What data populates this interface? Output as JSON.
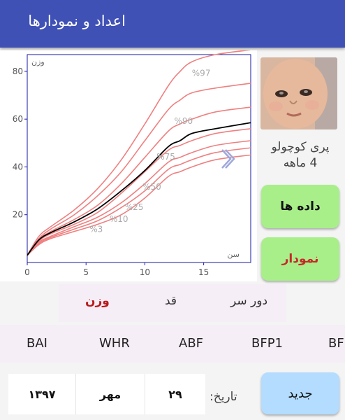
{
  "app": {
    "title": "اعداد و نمودارها"
  },
  "profile": {
    "name": "پری کوچولو",
    "age": "4 ماهه"
  },
  "side_buttons": {
    "data": "داده ها",
    "chart": "نمودار"
  },
  "metric_tabs": [
    {
      "label": "دور سر",
      "active": false
    },
    {
      "label": "قد",
      "active": false
    },
    {
      "label": "وزن",
      "active": true
    }
  ],
  "index_tabs": [
    "BAI",
    "WHR",
    "ABF",
    "BFP1",
    "BF"
  ],
  "date": {
    "label": "تاریخ:",
    "day": "۲۹",
    "month": "مهر",
    "year": "۱۳۹۷"
  },
  "new_button": "جدید",
  "colors": {
    "appbar": "#3f51b5",
    "percentile_line": "#ef8080",
    "child_line": "#000000",
    "data_button": "#a8ef8a",
    "new_button": "#b3dcff",
    "active_tab": "#b71c1c"
  },
  "icons": {
    "expand": "chevron-right-icon"
  },
  "chart_data": {
    "type": "line",
    "xlabel": "سن",
    "ylabel": "وزن",
    "xlim": [
      0,
      19
    ],
    "ylim": [
      0,
      87
    ],
    "x_ticks": [
      0,
      5,
      10,
      15
    ],
    "y_ticks": [
      20,
      40,
      60,
      80
    ],
    "grid": false,
    "x": [
      0,
      1,
      2,
      4,
      6,
      8,
      10,
      12,
      13,
      14,
      16,
      19
    ],
    "series": [
      {
        "name": "%97",
        "values": [
          3,
          11,
          15,
          22,
          31,
          43,
          58,
          74,
          80,
          84,
          87,
          89
        ],
        "label_at": 13.8
      },
      {
        "name": "%90",
        "values": [
          3,
          10,
          14,
          20,
          28,
          38,
          51,
          64,
          68,
          71,
          73,
          75
        ]
      },
      {
        "name": "%75",
        "values": [
          3,
          9.5,
          13,
          18,
          24,
          33,
          44,
          55,
          58,
          60,
          63,
          65
        ]
      },
      {
        "name": "%50",
        "values": [
          3,
          9,
          12,
          16,
          21,
          29,
          38,
          47,
          49,
          51,
          54,
          56
        ]
      },
      {
        "name": "%25",
        "values": [
          3,
          8.5,
          11,
          15,
          19,
          25,
          33,
          42,
          44,
          46,
          49,
          51
        ]
      },
      {
        "name": "%10",
        "values": [
          3,
          8,
          10.5,
          14,
          17.5,
          23,
          30,
          39,
          41,
          43,
          46,
          48
        ]
      },
      {
        "name": "%3",
        "values": [
          3,
          7.5,
          10,
          13,
          16,
          20,
          27,
          36,
          38,
          40,
          43,
          45
        ]
      },
      {
        "name": "child",
        "values": [
          3,
          9.5,
          12.5,
          17,
          22.5,
          30,
          38.5,
          48.5,
          51,
          54,
          56,
          58.5
        ]
      }
    ],
    "label_positions": [
      {
        "name": "%97",
        "x": 14,
        "y": 78
      },
      {
        "name": "%90",
        "x": 12.5,
        "y": 58
      },
      {
        "name": "%75",
        "x": 11,
        "y": 43
      },
      {
        "name": "%50",
        "x": 9.8,
        "y": 30.5
      },
      {
        "name": "%25",
        "x": 8.3,
        "y": 22
      },
      {
        "name": "%10",
        "x": 7,
        "y": 17
      },
      {
        "name": "%3",
        "x": 5.3,
        "y": 12.8
      }
    ]
  }
}
